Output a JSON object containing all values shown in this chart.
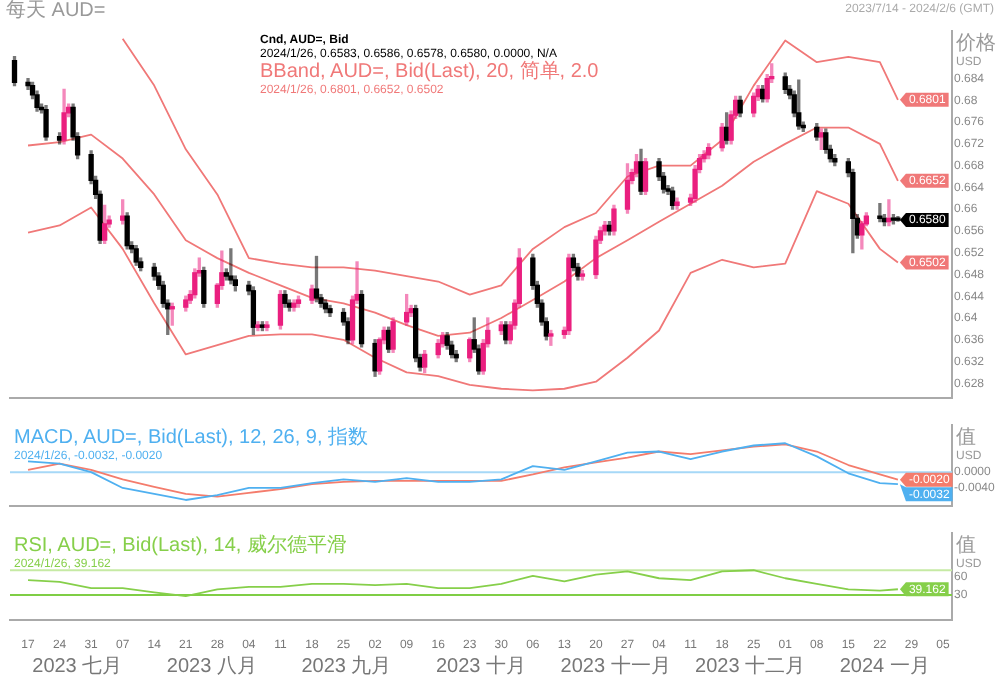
{
  "chart_data": [
    {
      "type": "candlestick",
      "title": "每天 AUD=",
      "subtitle": "2023/7/14 - 2024/2/6 (GMT)",
      "ylabel": "价格 USD",
      "legend": "top",
      "tick_labels": "y",
      "x": [
        "2023-07-14",
        "2023-07-17",
        "2023-07-18",
        "2023-07-19",
        "2023-07-20",
        "2023-07-21",
        "2023-07-24",
        "2023-07-25",
        "2023-07-26",
        "2023-07-27",
        "2023-07-28",
        "2023-07-31",
        "2023-08-01",
        "2023-08-02",
        "2023-08-03",
        "2023-08-04",
        "2023-08-07",
        "2023-08-08",
        "2023-08-09",
        "2023-08-10",
        "2023-08-11",
        "2023-08-14",
        "2023-08-15",
        "2023-08-16",
        "2023-08-17",
        "2023-08-18",
        "2023-08-21",
        "2023-08-22",
        "2023-08-23",
        "2023-08-24",
        "2023-08-25",
        "2023-08-28",
        "2023-08-29",
        "2023-08-30",
        "2023-08-31",
        "2023-09-01",
        "2023-09-04",
        "2023-09-05",
        "2023-09-06",
        "2023-09-07",
        "2023-09-08",
        "2023-09-11",
        "2023-09-12",
        "2023-09-13",
        "2023-09-14",
        "2023-09-15",
        "2023-09-18",
        "2023-09-19",
        "2023-09-20",
        "2023-09-21",
        "2023-09-22",
        "2023-09-25",
        "2023-09-26",
        "2023-09-27",
        "2023-09-28",
        "2023-09-29",
        "2023-10-02",
        "2023-10-03",
        "2023-10-04",
        "2023-10-05",
        "2023-10-06",
        "2023-10-09",
        "2023-10-10",
        "2023-10-11",
        "2023-10-12",
        "2023-10-13",
        "2023-10-16",
        "2023-10-17",
        "2023-10-18",
        "2023-10-19",
        "2023-10-20",
        "2023-10-23",
        "2023-10-24",
        "2023-10-25",
        "2023-10-26",
        "2023-10-27",
        "2023-10-30",
        "2023-10-31",
        "2023-11-01",
        "2023-11-02",
        "2023-11-03",
        "2023-11-06",
        "2023-11-07",
        "2023-11-08",
        "2023-11-09",
        "2023-11-10",
        "2023-11-13",
        "2023-11-14",
        "2023-11-15",
        "2023-11-16",
        "2023-11-17",
        "2023-11-20",
        "2023-11-21",
        "2023-11-22",
        "2023-11-23",
        "2023-11-24",
        "2023-11-27",
        "2023-11-28",
        "2023-11-29",
        "2023-11-30",
        "2023-12-01",
        "2023-12-04",
        "2023-12-05",
        "2023-12-06",
        "2023-12-07",
        "2023-12-08",
        "2023-12-11",
        "2023-12-12",
        "2023-12-13",
        "2023-12-14",
        "2023-12-15",
        "2023-12-18",
        "2023-12-19",
        "2023-12-20",
        "2023-12-21",
        "2023-12-22",
        "2023-12-25",
        "2023-12-26",
        "2023-12-27",
        "2023-12-28",
        "2023-12-29",
        "2024-01-01",
        "2024-01-02",
        "2024-01-03",
        "2024-01-04",
        "2024-01-05",
        "2024-01-08",
        "2024-01-09",
        "2024-01-10",
        "2024-01-11",
        "2024-01-12",
        "2024-01-15",
        "2024-01-16",
        "2024-01-17",
        "2024-01-18",
        "2024-01-19",
        "2024-01-22",
        "2024-01-23",
        "2024-01-24",
        "2024-01-25",
        "2024-01-26"
      ],
      "xlim": [
        "2023-07-13",
        "2024-02-07"
      ],
      "ylim": [
        0.6253,
        0.6927
      ],
      "yticks": [
        0.628,
        0.632,
        0.636,
        0.64,
        0.644,
        0.648,
        0.652,
        0.656,
        0.66,
        0.664,
        0.668,
        0.672,
        0.676,
        0.68,
        0.684
      ],
      "series": [
        {
          "name": "Cnd, AUD=, Bid",
          "color": "#000000",
          "ohlc": [
            [
              0.6873,
              0.688,
              0.6827,
              0.6833
            ],
            [
              0.6833,
              0.684,
              0.682,
              0.6827
            ],
            [
              0.6827,
              0.6833,
              0.6803,
              0.681
            ],
            [
              0.681,
              0.6817,
              0.678,
              0.6787
            ],
            [
              0.6787,
              0.6793,
              0.6777,
              0.6783
            ],
            [
              0.6783,
              0.679,
              0.6727,
              0.6733
            ],
            [
              0.6733,
              0.674,
              0.672,
              0.6727
            ],
            [
              0.6727,
              0.682,
              0.672,
              0.6777
            ],
            [
              0.6777,
              0.6793,
              0.677,
              0.6787
            ],
            [
              0.6787,
              0.6793,
              0.6727,
              0.6733
            ],
            [
              0.6733,
              0.674,
              0.6693,
              0.67
            ],
            [
              0.67,
              0.6707,
              0.6647,
              0.6653
            ],
            [
              0.6653,
              0.666,
              0.662,
              0.6627
            ],
            [
              0.6627,
              0.6633,
              0.6537,
              0.6543
            ],
            [
              0.6543,
              0.6607,
              0.6537,
              0.6573
            ],
            [
              0.6573,
              0.6587,
              0.6567,
              0.658
            ],
            [
              0.658,
              0.6617,
              0.6573,
              0.6587
            ],
            [
              0.6587,
              0.6593,
              0.6527,
              0.6533
            ],
            [
              0.6533,
              0.654,
              0.652,
              0.6527
            ],
            [
              0.6527,
              0.6533,
              0.6497,
              0.6503
            ],
            [
              0.6503,
              0.651,
              0.6487,
              0.6493
            ],
            [
              0.6493,
              0.65,
              0.647,
              0.6477
            ],
            [
              0.6477,
              0.6483,
              0.6453,
              0.646
            ],
            [
              0.646,
              0.6467,
              0.642,
              0.6427
            ],
            [
              0.6427,
              0.6433,
              0.637,
              0.6417
            ],
            [
              0.6417,
              0.6427,
              0.6387,
              0.642
            ],
            [
              0.642,
              0.644,
              0.6413,
              0.6433
            ],
            [
              0.6433,
              0.645,
              0.6427,
              0.6443
            ],
            [
              0.6443,
              0.649,
              0.6437,
              0.6483
            ],
            [
              0.6483,
              0.651,
              0.6477,
              0.6487
            ],
            [
              0.6487,
              0.6493,
              0.642,
              0.6427
            ],
            [
              0.6427,
              0.6463,
              0.642,
              0.646
            ],
            [
              0.646,
              0.6523,
              0.6453,
              0.6483
            ],
            [
              0.6483,
              0.649,
              0.647,
              0.6477
            ],
            [
              0.6477,
              0.6527,
              0.6463,
              0.647
            ],
            [
              0.647,
              0.6477,
              0.645,
              0.646
            ],
            [
              0.646,
              0.6467,
              0.6443,
              0.645
            ],
            [
              0.645,
              0.6457,
              0.637,
              0.6383
            ],
            [
              0.6383,
              0.6393,
              0.6377,
              0.6387
            ],
            [
              0.6387,
              0.6393,
              0.6377,
              0.6383
            ],
            [
              0.6383,
              0.6393,
              0.6377,
              0.6387
            ],
            [
              0.6387,
              0.645,
              0.638,
              0.6443
            ],
            [
              0.6443,
              0.645,
              0.642,
              0.6427
            ],
            [
              0.6427,
              0.6433,
              0.6413,
              0.642
            ],
            [
              0.642,
              0.6433,
              0.6413,
              0.6427
            ],
            [
              0.6427,
              0.644,
              0.642,
              0.6433
            ],
            [
              0.6433,
              0.646,
              0.6427,
              0.6453
            ],
            [
              0.6453,
              0.6513,
              0.643,
              0.6437
            ],
            [
              0.6437,
              0.6443,
              0.642,
              0.6427
            ],
            [
              0.6427,
              0.6433,
              0.641,
              0.6417
            ],
            [
              0.6417,
              0.6423,
              0.6403,
              0.641
            ],
            [
              0.641,
              0.6417,
              0.6387,
              0.6393
            ],
            [
              0.6393,
              0.64,
              0.6353,
              0.636
            ],
            [
              0.636,
              0.644,
              0.6353,
              0.6433
            ],
            [
              0.6433,
              0.6503,
              0.6427,
              0.6443
            ],
            [
              0.6443,
              0.645,
              0.6347,
              0.6353
            ],
            [
              0.6353,
              0.636,
              0.6293,
              0.6303
            ],
            [
              0.6303,
              0.6363,
              0.6297,
              0.636
            ],
            [
              0.636,
              0.6383,
              0.6353,
              0.6377
            ],
            [
              0.6377,
              0.6383,
              0.6337,
              0.6343
            ],
            [
              0.6343,
              0.64,
              0.6337,
              0.6393
            ],
            [
              0.6393,
              0.6443,
              0.6387,
              0.641
            ],
            [
              0.641,
              0.6423,
              0.6403,
              0.6417
            ],
            [
              0.6417,
              0.6423,
              0.632,
              0.6327
            ],
            [
              0.6327,
              0.6333,
              0.6303,
              0.631
            ],
            [
              0.631,
              0.634,
              0.63,
              0.6333
            ],
            [
              0.6333,
              0.636,
              0.6327,
              0.6353
            ],
            [
              0.6353,
              0.6373,
              0.6347,
              0.6367
            ],
            [
              0.6367,
              0.6373,
              0.6343,
              0.635
            ],
            [
              0.635,
              0.6357,
              0.6327,
              0.6333
            ],
            [
              0.6333,
              0.634,
              0.632,
              0.6327
            ],
            [
              0.6327,
              0.6363,
              0.632,
              0.636
            ],
            [
              0.636,
              0.64,
              0.6337,
              0.6343
            ],
            [
              0.6343,
              0.635,
              0.6297,
              0.6303
            ],
            [
              0.6303,
              0.636,
              0.6297,
              0.6353
            ],
            [
              0.6353,
              0.64,
              0.6347,
              0.6377
            ],
            [
              0.6377,
              0.6393,
              0.637,
              0.6387
            ],
            [
              0.6387,
              0.6393,
              0.6353,
              0.636
            ],
            [
              0.636,
              0.6393,
              0.6353,
              0.6387
            ],
            [
              0.6387,
              0.6433,
              0.638,
              0.6427
            ],
            [
              0.6427,
              0.6527,
              0.642,
              0.651
            ],
            [
              0.651,
              0.6517,
              0.6453,
              0.646
            ],
            [
              0.646,
              0.6467,
              0.642,
              0.6427
            ],
            [
              0.6427,
              0.6433,
              0.6387,
              0.6393
            ],
            [
              0.6393,
              0.64,
              0.636,
              0.6367
            ],
            [
              0.6367,
              0.6377,
              0.635,
              0.637
            ],
            [
              0.637,
              0.6383,
              0.6363,
              0.6377
            ],
            [
              0.6377,
              0.6517,
              0.637,
              0.651
            ],
            [
              0.651,
              0.6517,
              0.6487,
              0.6493
            ],
            [
              0.6493,
              0.65,
              0.647,
              0.6477
            ],
            [
              0.6477,
              0.6487,
              0.647,
              0.648
            ],
            [
              0.648,
              0.655,
              0.6473,
              0.6543
            ],
            [
              0.6543,
              0.6567,
              0.6537,
              0.656
            ],
            [
              0.656,
              0.6577,
              0.6553,
              0.657
            ],
            [
              0.657,
              0.6577,
              0.6553,
              0.656
            ],
            [
              0.656,
              0.6607,
              0.6553,
              0.66
            ],
            [
              0.66,
              0.6683,
              0.6593,
              0.6653
            ],
            [
              0.6653,
              0.6673,
              0.6647,
              0.6667
            ],
            [
              0.6667,
              0.67,
              0.666,
              0.6687
            ],
            [
              0.6687,
              0.671,
              0.6627,
              0.6633
            ],
            [
              0.6633,
              0.6693,
              0.6627,
              0.6687
            ],
            [
              0.6687,
              0.6693,
              0.6653,
              0.666
            ],
            [
              0.666,
              0.6667,
              0.663,
              0.6637
            ],
            [
              0.6637,
              0.6643,
              0.6627,
              0.6633
            ],
            [
              0.6633,
              0.664,
              0.66,
              0.6607
            ],
            [
              0.6607,
              0.662,
              0.66,
              0.6613
            ],
            [
              0.6613,
              0.6627,
              0.6607,
              0.662
            ],
            [
              0.662,
              0.668,
              0.6613,
              0.6673
            ],
            [
              0.6673,
              0.67,
              0.6667,
              0.6693
            ],
            [
              0.6693,
              0.6707,
              0.6687,
              0.67
            ],
            [
              0.67,
              0.672,
              0.6693,
              0.6713
            ],
            [
              0.6713,
              0.6757,
              0.6707,
              0.675
            ],
            [
              0.675,
              0.6777,
              0.672,
              0.6727
            ],
            [
              0.6727,
              0.678,
              0.672,
              0.6773
            ],
            [
              0.6773,
              0.6807,
              0.6767,
              0.68
            ],
            [
              0.68,
              0.6807,
              0.677,
              0.6777
            ],
            [
              0.6777,
              0.6813,
              0.677,
              0.6807
            ],
            [
              0.6807,
              0.6827,
              0.68,
              0.682
            ],
            [
              0.682,
              0.6827,
              0.6797,
              0.6803
            ],
            [
              0.6803,
              0.6847,
              0.6797,
              0.684
            ],
            [
              0.684,
              0.6867,
              0.6833,
              0.6843
            ],
            [
              0.6843,
              0.685,
              0.6813,
              0.682
            ],
            [
              0.682,
              0.6827,
              0.6803,
              0.681
            ],
            [
              0.681,
              0.6817,
              0.677,
              0.6777
            ],
            [
              0.6777,
              0.6837,
              0.6747,
              0.6753
            ],
            [
              0.6753,
              0.676,
              0.6743,
              0.675
            ],
            [
              0.675,
              0.6757,
              0.6727,
              0.6733
            ],
            [
              0.6733,
              0.6747,
              0.671,
              0.674
            ],
            [
              0.674,
              0.6747,
              0.6703,
              0.671
            ],
            [
              0.671,
              0.6717,
              0.6687,
              0.6693
            ],
            [
              0.6693,
              0.67,
              0.668,
              0.6687
            ],
            [
              0.6687,
              0.6693,
              0.666,
              0.6667
            ],
            [
              0.6667,
              0.6673,
              0.652,
              0.6583
            ],
            [
              0.6583,
              0.659,
              0.6547,
              0.6553
            ],
            [
              0.6553,
              0.6577,
              0.6527,
              0.6573
            ],
            [
              0.6573,
              0.6593,
              0.657,
              0.6587
            ],
            [
              0.6587,
              0.661,
              0.6577,
              0.6583
            ],
            [
              0.6583,
              0.659,
              0.657,
              0.6577
            ],
            [
              0.6577,
              0.6617,
              0.657,
              0.6583
            ],
            [
              0.6583,
              0.659,
              0.6573,
              0.658
            ],
            [
              0.6583,
              0.6586,
              0.6578,
              0.658
            ]
          ],
          "colors": [
            "#000000",
            "#000000",
            "#000000",
            "#000000",
            "#000000",
            "#000000",
            "#000000",
            "#ea1f7f",
            "#ea1f7f",
            "#000000",
            "#000000",
            "#000000",
            "#000000",
            "#000000",
            "#ea1f7f",
            "#ea1f7f",
            "#ea1f7f",
            "#000000",
            "#000000",
            "#000000",
            "#000000",
            "#000000",
            "#000000",
            "#000000",
            "#000000",
            "#ea1f7f",
            "#ea1f7f",
            "#ea1f7f",
            "#ea1f7f",
            "#ea1f7f",
            "#000000",
            "#ea1f7f",
            "#ea1f7f",
            "#000000",
            "#000000",
            "#000000",
            "#000000",
            "#000000",
            "#ea1f7f",
            "#000000",
            "#ea1f7f",
            "#ea1f7f",
            "#000000",
            "#000000",
            "#ea1f7f",
            "#ea1f7f",
            "#ea1f7f",
            "#000000",
            "#000000",
            "#000000",
            "#000000",
            "#000000",
            "#000000",
            "#ea1f7f",
            "#ea1f7f",
            "#000000",
            "#000000",
            "#ea1f7f",
            "#ea1f7f",
            "#000000",
            "#ea1f7f",
            "#ea1f7f",
            "#ea1f7f",
            "#000000",
            "#000000",
            "#ea1f7f",
            "#ea1f7f",
            "#ea1f7f",
            "#000000",
            "#000000",
            "#000000",
            "#ea1f7f",
            "#000000",
            "#000000",
            "#ea1f7f",
            "#ea1f7f",
            "#ea1f7f",
            "#000000",
            "#ea1f7f",
            "#ea1f7f",
            "#ea1f7f",
            "#000000",
            "#000000",
            "#000000",
            "#000000",
            "#ea1f7f",
            "#ea1f7f",
            "#ea1f7f",
            "#000000",
            "#000000",
            "#ea1f7f",
            "#ea1f7f",
            "#ea1f7f",
            "#ea1f7f",
            "#000000",
            "#ea1f7f",
            "#ea1f7f",
            "#ea1f7f",
            "#ea1f7f",
            "#000000",
            "#ea1f7f",
            "#000000",
            "#000000",
            "#000000",
            "#000000",
            "#ea1f7f",
            "#ea1f7f",
            "#ea1f7f",
            "#ea1f7f",
            "#ea1f7f",
            "#ea1f7f",
            "#ea1f7f",
            "#000000",
            "#ea1f7f",
            "#ea1f7f",
            "#000000",
            "#ea1f7f",
            "#ea1f7f",
            "#000000",
            "#ea1f7f",
            "#ea1f7f",
            "#000000",
            "#000000",
            "#000000",
            "#000000",
            "#000000",
            "#000000",
            "#ea1f7f",
            "#000000",
            "#000000",
            "#000000",
            "#000000",
            "#000000",
            "#000000",
            "#ea1f7f",
            "#ea1f7f",
            "#000000",
            "#000000",
            "#ea1f7f",
            "#000000",
            "#000000"
          ]
        },
        {
          "type": "line",
          "name": "BBand, AUD=, Bid(Last), 20, 简单, 2.0",
          "color": "#f07878",
          "x": [
            "2023-08-07",
            "2023-08-14",
            "2023-08-21",
            "2023-08-28",
            "2023-09-04",
            "2023-09-11",
            "2023-09-18",
            "2023-09-25",
            "2023-10-02",
            "2023-10-09",
            "2023-10-16",
            "2023-10-23",
            "2023-10-30",
            "2023-11-06",
            "2023-11-13",
            "2023-11-20",
            "2023-11-27",
            "2023-12-04",
            "2023-12-11",
            "2023-12-18",
            "2023-12-25",
            "2024-01-01",
            "2024-01-08",
            "2024-01-15",
            "2024-01-22",
            "2024-01-26"
          ],
          "values": [
            0.6913,
            0.6827,
            0.671,
            0.6627,
            0.651,
            0.65,
            0.6493,
            0.6493,
            0.6487,
            0.6477,
            0.6467,
            0.6443,
            0.646,
            0.6527,
            0.6567,
            0.6593,
            0.666,
            0.668,
            0.668,
            0.6727,
            0.6827,
            0.691,
            0.687,
            0.688,
            0.687,
            0.6801
          ]
        },
        {
          "type": "line",
          "color": "#f07878",
          "x": [
            "2023-07-17",
            "2023-07-24",
            "2023-07-31",
            "2023-08-07",
            "2023-08-14",
            "2023-08-21",
            "2023-08-28",
            "2023-09-04",
            "2023-09-11",
            "2023-09-18",
            "2023-09-25",
            "2023-10-02",
            "2023-10-09",
            "2023-10-16",
            "2023-10-23",
            "2023-10-30",
            "2023-11-06",
            "2023-11-13",
            "2023-11-20",
            "2023-11-27",
            "2023-12-04",
            "2023-12-11",
            "2023-12-18",
            "2023-12-25",
            "2024-01-01",
            "2024-01-08",
            "2024-01-15",
            "2024-01-22",
            "2024-01-26"
          ],
          "values": [
            0.6717,
            0.6723,
            0.6737,
            0.6693,
            0.6627,
            0.6543,
            0.651,
            0.6483,
            0.646,
            0.6437,
            0.6427,
            0.641,
            0.6387,
            0.6367,
            0.6373,
            0.64,
            0.6433,
            0.6467,
            0.651,
            0.6543,
            0.6577,
            0.661,
            0.6643,
            0.6687,
            0.672,
            0.675,
            0.675,
            0.672,
            0.6652
          ]
        },
        {
          "type": "line",
          "color": "#f07878",
          "x": [
            "2023-07-17",
            "2023-07-24",
            "2023-07-31",
            "2023-08-07",
            "2023-08-14",
            "2023-08-21",
            "2023-08-28",
            "2023-09-04",
            "2023-09-11",
            "2023-09-18",
            "2023-09-25",
            "2023-10-02",
            "2023-10-09",
            "2023-10-16",
            "2023-10-23",
            "2023-10-30",
            "2023-11-06",
            "2023-11-13",
            "2023-11-20",
            "2023-11-27",
            "2023-12-04",
            "2023-12-11",
            "2023-12-18",
            "2023-12-25",
            "2024-01-01",
            "2024-01-08",
            "2024-01-15",
            "2024-01-22",
            "2024-01-26"
          ],
          "values": [
            0.6557,
            0.657,
            0.6603,
            0.6527,
            0.6427,
            0.6333,
            0.635,
            0.6367,
            0.637,
            0.637,
            0.636,
            0.6327,
            0.63,
            0.6293,
            0.6277,
            0.627,
            0.6267,
            0.627,
            0.6283,
            0.6327,
            0.6377,
            0.6483,
            0.6507,
            0.6493,
            0.65,
            0.6633,
            0.661,
            0.6527,
            0.6502
          ]
        }
      ],
      "annotations": [
        "2024/1/26, 0.6583, 0.6586, 0.6578, 0.6580, 0.0000, N/A",
        "2024/1/26, 0.6801, 0.6652, 0.6502",
        {
          "text": "0.6801",
          "x": "2024-01-26",
          "y": 0.6801
        },
        {
          "text": "0.6652",
          "x": "2024-01-26",
          "y": 0.6652
        },
        {
          "text": "0.6580",
          "x": "2024-01-26",
          "y": 0.658
        },
        {
          "text": "0.6502",
          "x": "2024-01-26",
          "y": 0.6502
        }
      ]
    },
    {
      "type": "line",
      "ylabel": "值 USD",
      "legend": "top left",
      "tick_labels": "y",
      "xlim": [
        "2023-07-13",
        "2024-02-07"
      ],
      "ylim": [
        -0.009,
        0.0125
      ],
      "yticks": [
        {
          "value": -0.004,
          "label": "-0.0040"
        },
        {
          "value": 0,
          "label": "0.0000"
        }
      ],
      "ref_lines": [
        {
          "axis": "y",
          "value": 0,
          "color": "#a6d8f7"
        }
      ],
      "series": [
        {
          "name": "MACD, AUD=, Bid(Last), 12, 26, 9, 指数",
          "color": "#4fb0f0",
          "x": [
            "2023-07-17",
            "2023-07-24",
            "2023-07-31",
            "2023-08-07",
            "2023-08-14",
            "2023-08-21",
            "2023-08-28",
            "2023-09-04",
            "2023-09-11",
            "2023-09-18",
            "2023-09-25",
            "2023-10-02",
            "2023-10-09",
            "2023-10-16",
            "2023-10-23",
            "2023-10-30",
            "2023-11-06",
            "2023-11-13",
            "2023-11-20",
            "2023-11-27",
            "2023-12-04",
            "2023-12-11",
            "2023-12-18",
            "2023-12-25",
            "2024-01-01",
            "2024-01-08",
            "2024-01-15",
            "2024-01-22",
            "2024-01-26"
          ],
          "values": [
            0.0029,
            0.0023,
            0,
            -0.0042,
            -0.0058,
            -0.0074,
            -0.0061,
            -0.0042,
            -0.0042,
            -0.0029,
            -0.0019,
            -0.0026,
            -0.0016,
            -0.0026,
            -0.0026,
            -0.0019,
            0.0016,
            0.0006,
            0.0029,
            0.0052,
            0.0055,
            0.0035,
            0.0055,
            0.0071,
            0.0077,
            0.0042,
            -0.0003,
            -0.0029,
            -0.0032
          ]
        },
        {
          "color": "#f47c6c",
          "x": [
            "2023-07-17",
            "2023-07-24",
            "2023-07-31",
            "2023-08-07",
            "2023-08-14",
            "2023-08-21",
            "2023-08-28",
            "2023-09-04",
            "2023-09-11",
            "2023-09-18",
            "2023-09-25",
            "2023-10-02",
            "2023-10-09",
            "2023-10-16",
            "2023-10-23",
            "2023-10-30",
            "2023-11-06",
            "2023-11-13",
            "2023-11-20",
            "2023-11-27",
            "2023-12-04",
            "2023-12-11",
            "2023-12-18",
            "2023-12-25",
            "2024-01-01",
            "2024-01-08",
            "2024-01-15",
            "2024-01-22",
            "2024-01-26"
          ],
          "values": [
            0.0006,
            0.0023,
            0.0006,
            -0.0019,
            -0.0039,
            -0.0058,
            -0.0065,
            -0.0055,
            -0.0045,
            -0.0032,
            -0.0026,
            -0.0023,
            -0.0023,
            -0.0023,
            -0.0023,
            -0.0023,
            -0.0006,
            0.0013,
            0.0026,
            0.0039,
            0.0055,
            0.0048,
            0.0058,
            0.0068,
            0.0074,
            0.0055,
            0.0019,
            -0.0006,
            -0.002
          ]
        }
      ],
      "annotations": [
        "2024/1/26, -0.0032, -0.0020",
        {
          "text": "-0.0020",
          "x": "2024-01-26",
          "y": -0.002
        },
        {
          "text": "-0.0032",
          "x": "2024-01-26",
          "y": -0.0032
        }
      ]
    },
    {
      "type": "line",
      "ylabel": "值 USD",
      "legend": "top left",
      "xlim": [
        "2023-07-13",
        "2024-02-07"
      ],
      "ylim": [
        -10,
        130
      ],
      "xticks": [
        {
          "value": "2023-07-17",
          "label": "17"
        },
        {
          "value": "2023-07-24",
          "label": "24"
        },
        {
          "value": "2023-07-31",
          "label": "31"
        },
        {
          "value": "2023-08-07",
          "label": "07"
        },
        {
          "value": "2023-08-14",
          "label": "14"
        },
        {
          "value": "2023-08-21",
          "label": "21"
        },
        {
          "value": "2023-08-28",
          "label": "28"
        },
        {
          "value": "2023-09-04",
          "label": "04"
        },
        {
          "value": "2023-09-11",
          "label": "11"
        },
        {
          "value": "2023-09-18",
          "label": "18"
        },
        {
          "value": "2023-09-25",
          "label": "25"
        },
        {
          "value": "2023-10-02",
          "label": "02"
        },
        {
          "value": "2023-10-09",
          "label": "09"
        },
        {
          "value": "2023-10-16",
          "label": "16"
        },
        {
          "value": "2023-10-23",
          "label": "23"
        },
        {
          "value": "2023-10-30",
          "label": "30"
        },
        {
          "value": "2023-11-06",
          "label": "06"
        },
        {
          "value": "2023-11-13",
          "label": "13"
        },
        {
          "value": "2023-11-20",
          "label": "20"
        },
        {
          "value": "2023-11-27",
          "label": "27"
        },
        {
          "value": "2023-12-04",
          "label": "04"
        },
        {
          "value": "2023-12-11",
          "label": "11"
        },
        {
          "value": "2023-12-18",
          "label": "18"
        },
        {
          "value": "2023-12-25",
          "label": "25"
        },
        {
          "value": "2024-01-01",
          "label": "01"
        },
        {
          "value": "2024-01-08",
          "label": "08"
        },
        {
          "value": "2024-01-15",
          "label": "15"
        },
        {
          "value": "2024-01-22",
          "label": "22"
        },
        {
          "value": "2024-01-29",
          "label": "29"
        },
        {
          "value": "2024-02-05",
          "label": "05"
        }
      ],
      "yticks": [
        30,
        60
      ],
      "ref_lines": [
        {
          "axis": "y",
          "value": 70,
          "color": "#c6eaa4"
        },
        {
          "axis": "y",
          "value": 30,
          "color": "#7fce45"
        }
      ],
      "series": [
        {
          "name": "RSI, AUD=, Bid(Last), 14, 威尔德平滑",
          "color": "#86cf4a",
          "x": [
            "2023-07-17",
            "2023-07-24",
            "2023-07-31",
            "2023-08-07",
            "2023-08-14",
            "2023-08-21",
            "2023-08-28",
            "2023-09-04",
            "2023-09-11",
            "2023-09-18",
            "2023-09-25",
            "2023-10-02",
            "2023-10-09",
            "2023-10-16",
            "2023-10-23",
            "2023-10-30",
            "2023-11-06",
            "2023-11-13",
            "2023-11-20",
            "2023-11-27",
            "2023-12-04",
            "2023-12-11",
            "2023-12-18",
            "2023-12-25",
            "2024-01-01",
            "2024-01-08",
            "2024-01-15",
            "2024-01-22",
            "2024-01-26"
          ],
          "values": [
            54,
            51,
            41,
            41,
            34,
            28,
            39,
            43,
            43,
            48,
            48,
            46,
            48,
            41,
            41,
            48,
            61,
            52,
            63,
            68,
            57,
            54,
            68,
            70,
            57,
            48,
            39,
            37,
            39.162
          ]
        }
      ],
      "annotations": [
        "2024/1/26, 39.162",
        {
          "text": "39.162",
          "x": "2024-01-26",
          "y": 39.162
        },
        "2023 七月",
        "2023 八月",
        "2023 九月",
        "2023 十月",
        "2023 十一月",
        "2023 十二月",
        "2024 一月"
      ]
    }
  ]
}
